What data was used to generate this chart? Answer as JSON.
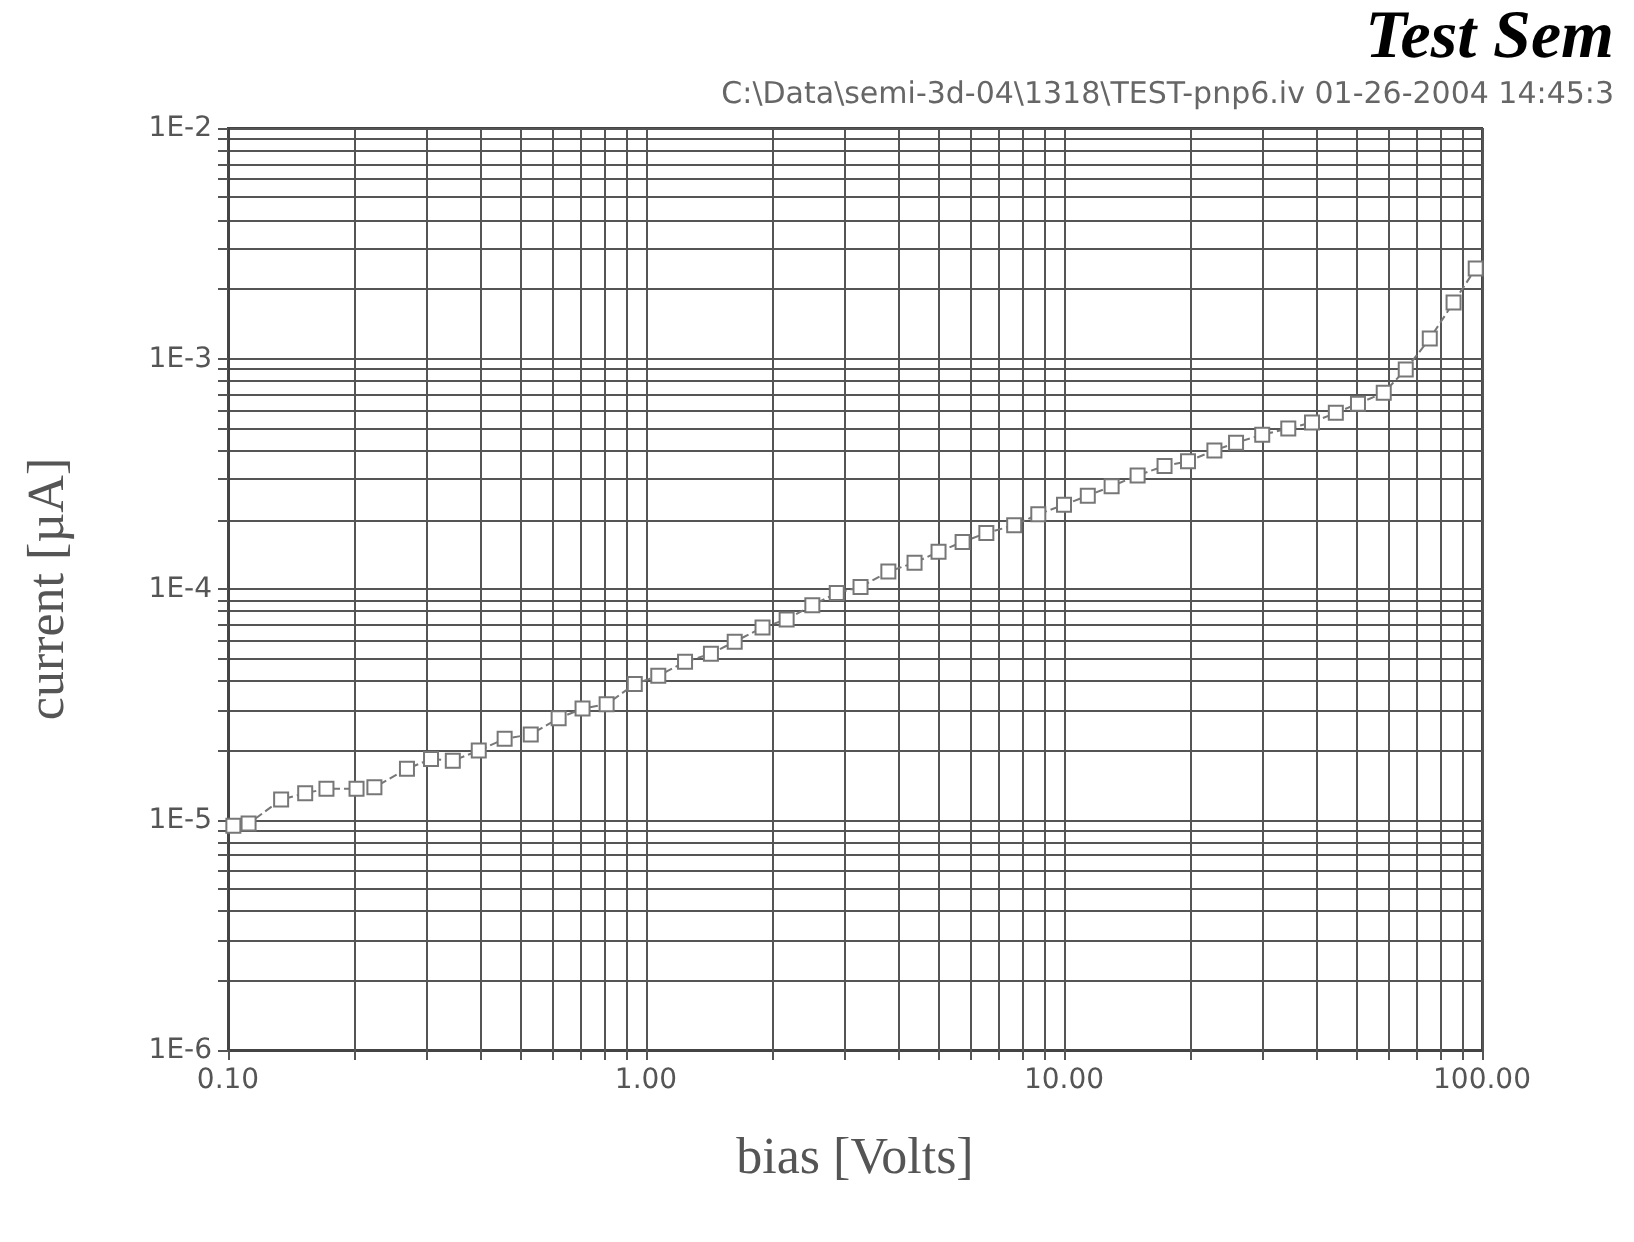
{
  "chart_data": {
    "type": "line",
    "title": "Test Sem",
    "subtitle": "C:\\Data\\semi-3d-04\\1318\\TEST-pnp6.iv 01-26-2004 14:45:3",
    "xlabel": "bias [Volts]",
    "ylabel": "current [µA]",
    "log": "xy",
    "grid": true,
    "marker": "square",
    "line_style": "dashed",
    "xlim": [
      0.1,
      100
    ],
    "ylim": [
      1e-06,
      0.01
    ],
    "xticks": [
      {
        "value": 0.1,
        "label": "0.10"
      },
      {
        "value": 0.2,
        "label": null
      },
      {
        "value": 0.3,
        "label": null
      },
      {
        "value": 0.4,
        "label": null
      },
      {
        "value": 0.5,
        "label": null
      },
      {
        "value": 0.6,
        "label": null
      },
      {
        "value": 0.7,
        "label": null
      },
      {
        "value": 0.8,
        "label": null
      },
      {
        "value": 0.9,
        "label": null
      },
      {
        "value": 1,
        "label": "1.00"
      },
      {
        "value": 2,
        "label": null
      },
      {
        "value": 3,
        "label": null
      },
      {
        "value": 4,
        "label": null
      },
      {
        "value": 5,
        "label": null
      },
      {
        "value": 6,
        "label": null
      },
      {
        "value": 7,
        "label": null
      },
      {
        "value": 8,
        "label": null
      },
      {
        "value": 9,
        "label": null
      },
      {
        "value": 10,
        "label": "10.00"
      },
      {
        "value": 20,
        "label": null
      },
      {
        "value": 30,
        "label": null
      },
      {
        "value": 40,
        "label": null
      },
      {
        "value": 50,
        "label": null
      },
      {
        "value": 60,
        "label": null
      },
      {
        "value": 70,
        "label": null
      },
      {
        "value": 80,
        "label": null
      },
      {
        "value": 90,
        "label": null
      },
      {
        "value": 100,
        "label": "100.00"
      }
    ],
    "yticks": [
      {
        "value": 1e-06,
        "label": "1E-6"
      },
      {
        "value": 2e-06,
        "label": null
      },
      {
        "value": 3e-06,
        "label": null
      },
      {
        "value": 4e-06,
        "label": null
      },
      {
        "value": 5e-06,
        "label": null
      },
      {
        "value": 6e-06,
        "label": null
      },
      {
        "value": 7e-06,
        "label": null
      },
      {
        "value": 8e-06,
        "label": null
      },
      {
        "value": 9e-06,
        "label": null
      },
      {
        "value": 1e-05,
        "label": "1E-5"
      },
      {
        "value": 2e-05,
        "label": null
      },
      {
        "value": 3e-05,
        "label": null
      },
      {
        "value": 4e-05,
        "label": null
      },
      {
        "value": 5e-05,
        "label": null
      },
      {
        "value": 6e-05,
        "label": null
      },
      {
        "value": 7e-05,
        "label": null
      },
      {
        "value": 8e-05,
        "label": null
      },
      {
        "value": 9e-05,
        "label": null
      },
      {
        "value": 0.0001,
        "label": "1E-4"
      },
      {
        "value": 0.0002,
        "label": null
      },
      {
        "value": 0.0003,
        "label": null
      },
      {
        "value": 0.0004,
        "label": null
      },
      {
        "value": 0.0005,
        "label": null
      },
      {
        "value": 0.0006,
        "label": null
      },
      {
        "value": 0.0007,
        "label": null
      },
      {
        "value": 0.0008,
        "label": null
      },
      {
        "value": 0.0009,
        "label": null
      },
      {
        "value": 0.001,
        "label": "1E-3"
      },
      {
        "value": 0.002,
        "label": null
      },
      {
        "value": 0.003,
        "label": null
      },
      {
        "value": 0.004,
        "label": null
      },
      {
        "value": 0.005,
        "label": null
      },
      {
        "value": 0.006,
        "label": null
      },
      {
        "value": 0.007,
        "label": null
      },
      {
        "value": 0.008,
        "label": null
      },
      {
        "value": 0.009,
        "label": null
      },
      {
        "value": 0.01,
        "label": "1E-2"
      }
    ],
    "x": [
      0.103,
      0.112,
      0.134,
      0.153,
      0.172,
      0.203,
      0.224,
      0.268,
      0.306,
      0.345,
      0.398,
      0.459,
      0.53,
      0.618,
      0.705,
      0.805,
      0.94,
      1.07,
      1.24,
      1.43,
      1.63,
      1.9,
      2.17,
      2.5,
      2.86,
      3.26,
      3.8,
      4.39,
      5.01,
      5.72,
      6.52,
      7.6,
      8.68,
      10,
      11.4,
      13,
      15,
      17.4,
      19.8,
      22.9,
      25.8,
      29.8,
      34.4,
      39.2,
      44.7,
      50.5,
      58.2,
      65.7,
      75,
      85.5,
      96.6
    ],
    "series": [
      {
        "color": "#777777",
        "values": [
          9.4e-06,
          9.6e-06,
          1.22e-05,
          1.3e-05,
          1.36e-05,
          1.36e-05,
          1.38e-05,
          1.66e-05,
          1.83e-05,
          1.8e-05,
          1.99e-05,
          2.24e-05,
          2.34e-05,
          2.75e-05,
          3.03e-05,
          3.16e-05,
          3.87e-05,
          4.2e-05,
          4.83e-05,
          5.24e-05,
          5.91e-05,
          6.81e-05,
          7.38e-05,
          8.51e-05,
          9.6e-05,
          0.000102,
          0.000119,
          0.00013,
          0.000145,
          0.00016,
          0.000175,
          0.000189,
          0.000211,
          0.000232,
          0.000254,
          0.000279,
          0.000311,
          0.000342,
          0.000358,
          0.000399,
          0.000431,
          0.000467,
          0.000497,
          0.000528,
          0.000581,
          0.000637,
          0.00071,
          0.000897,
          0.00122,
          0.00175,
          0.00246
        ]
      }
    ]
  }
}
